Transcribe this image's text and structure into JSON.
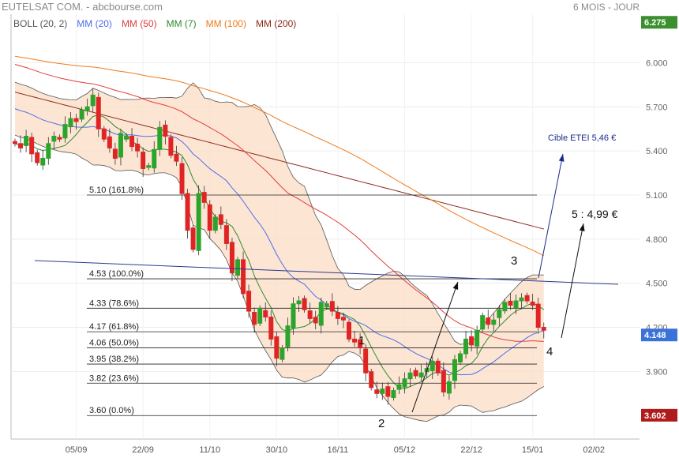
{
  "header": {
    "title": "EUTELSAT COM. - abcbourse.com",
    "period": "6 MOIS - JOUR"
  },
  "chart_data": {
    "type": "candlestick",
    "legend": [
      {
        "name": "BOLL (20, 2)",
        "color": "#555555"
      },
      {
        "name": "MM (20)",
        "color": "#4d6ee8"
      },
      {
        "name": "MM (50)",
        "color": "#e33b3b"
      },
      {
        "name": "MM (7)",
        "color": "#2e8b2e"
      },
      {
        "name": "MM (100)",
        "color": "#f07a1a"
      },
      {
        "name": "MM (200)",
        "color": "#8b2a1a"
      }
    ],
    "x_tick_labels": [
      "05/09",
      "22/09",
      "11/10",
      "30/10",
      "16/11",
      "05/12",
      "22/12",
      "15/01",
      "02/02"
    ],
    "y_ticks": [
      3.9,
      4.2,
      4.5,
      4.8,
      5.1,
      5.4,
      5.7,
      6.0
    ],
    "y_tick_labels": [
      "3.900",
      "4.200",
      "4.500",
      "4.800",
      "5.100",
      "5.400",
      "5.700",
      "6.000"
    ],
    "ylim": [
      3.44,
      6.33
    ],
    "price_badges": [
      {
        "label": "6.275",
        "value": 6.275,
        "color": "#3b8f2f"
      },
      {
        "label": "4.148",
        "value": 4.148,
        "color": "#3a72d8"
      },
      {
        "label": "3.602",
        "value": 3.602,
        "color": "#b01c1c"
      }
    ],
    "fibonacci_levels": [
      {
        "label": "5.10  (161.8%)",
        "value": 5.1
      },
      {
        "label": "4.53  (100.0%)",
        "value": 4.53
      },
      {
        "label": "4.33  (78.6%)",
        "value": 4.33
      },
      {
        "label": "4.17  (61.8%)",
        "value": 4.17
      },
      {
        "label": "4.06  (50.0%)",
        "value": 4.06
      },
      {
        "label": "3.95  (38.2%)",
        "value": 3.95
      },
      {
        "label": "3.82  (23.6%)",
        "value": 3.82
      },
      {
        "label": "3.60  (0.0%)",
        "value": 3.6
      }
    ],
    "annotations": {
      "target_label": "Cible ETEI 5,46 €",
      "objective_label": "5 : 4,99 €",
      "wave_labels": [
        "1",
        "2",
        "3",
        "4"
      ]
    },
    "closes": [
      5.45,
      5.42,
      5.5,
      5.38,
      5.32,
      5.35,
      5.45,
      5.5,
      5.48,
      5.58,
      5.62,
      5.6,
      5.68,
      5.7,
      5.78,
      5.55,
      5.48,
      5.42,
      5.35,
      5.52,
      5.5,
      5.43,
      5.4,
      5.28,
      5.3,
      5.41,
      5.56,
      5.5,
      5.37,
      5.33,
      5.11,
      4.86,
      4.73,
      5.11,
      5.05,
      4.86,
      4.95,
      4.9,
      4.77,
      4.57,
      4.66,
      4.43,
      4.31,
      4.22,
      4.33,
      4.27,
      4.12,
      3.99,
      4.06,
      4.21,
      4.36,
      4.38,
      4.32,
      4.26,
      4.23,
      4.37,
      4.36,
      4.31,
      4.26,
      4.25,
      4.12,
      4.1,
      4.06,
      3.89,
      3.79,
      3.75,
      3.78,
      3.73,
      3.77,
      3.81,
      3.85,
      3.89,
      3.87,
      3.89,
      3.92,
      3.97,
      3.89,
      3.76,
      3.83,
      3.98,
      4.02,
      4.12,
      4.08,
      4.18,
      4.28,
      4.22,
      4.25,
      4.32,
      4.37,
      4.35,
      4.38,
      4.4,
      4.38,
      4.35,
      4.2,
      4.18
    ],
    "candle_count": 96
  }
}
